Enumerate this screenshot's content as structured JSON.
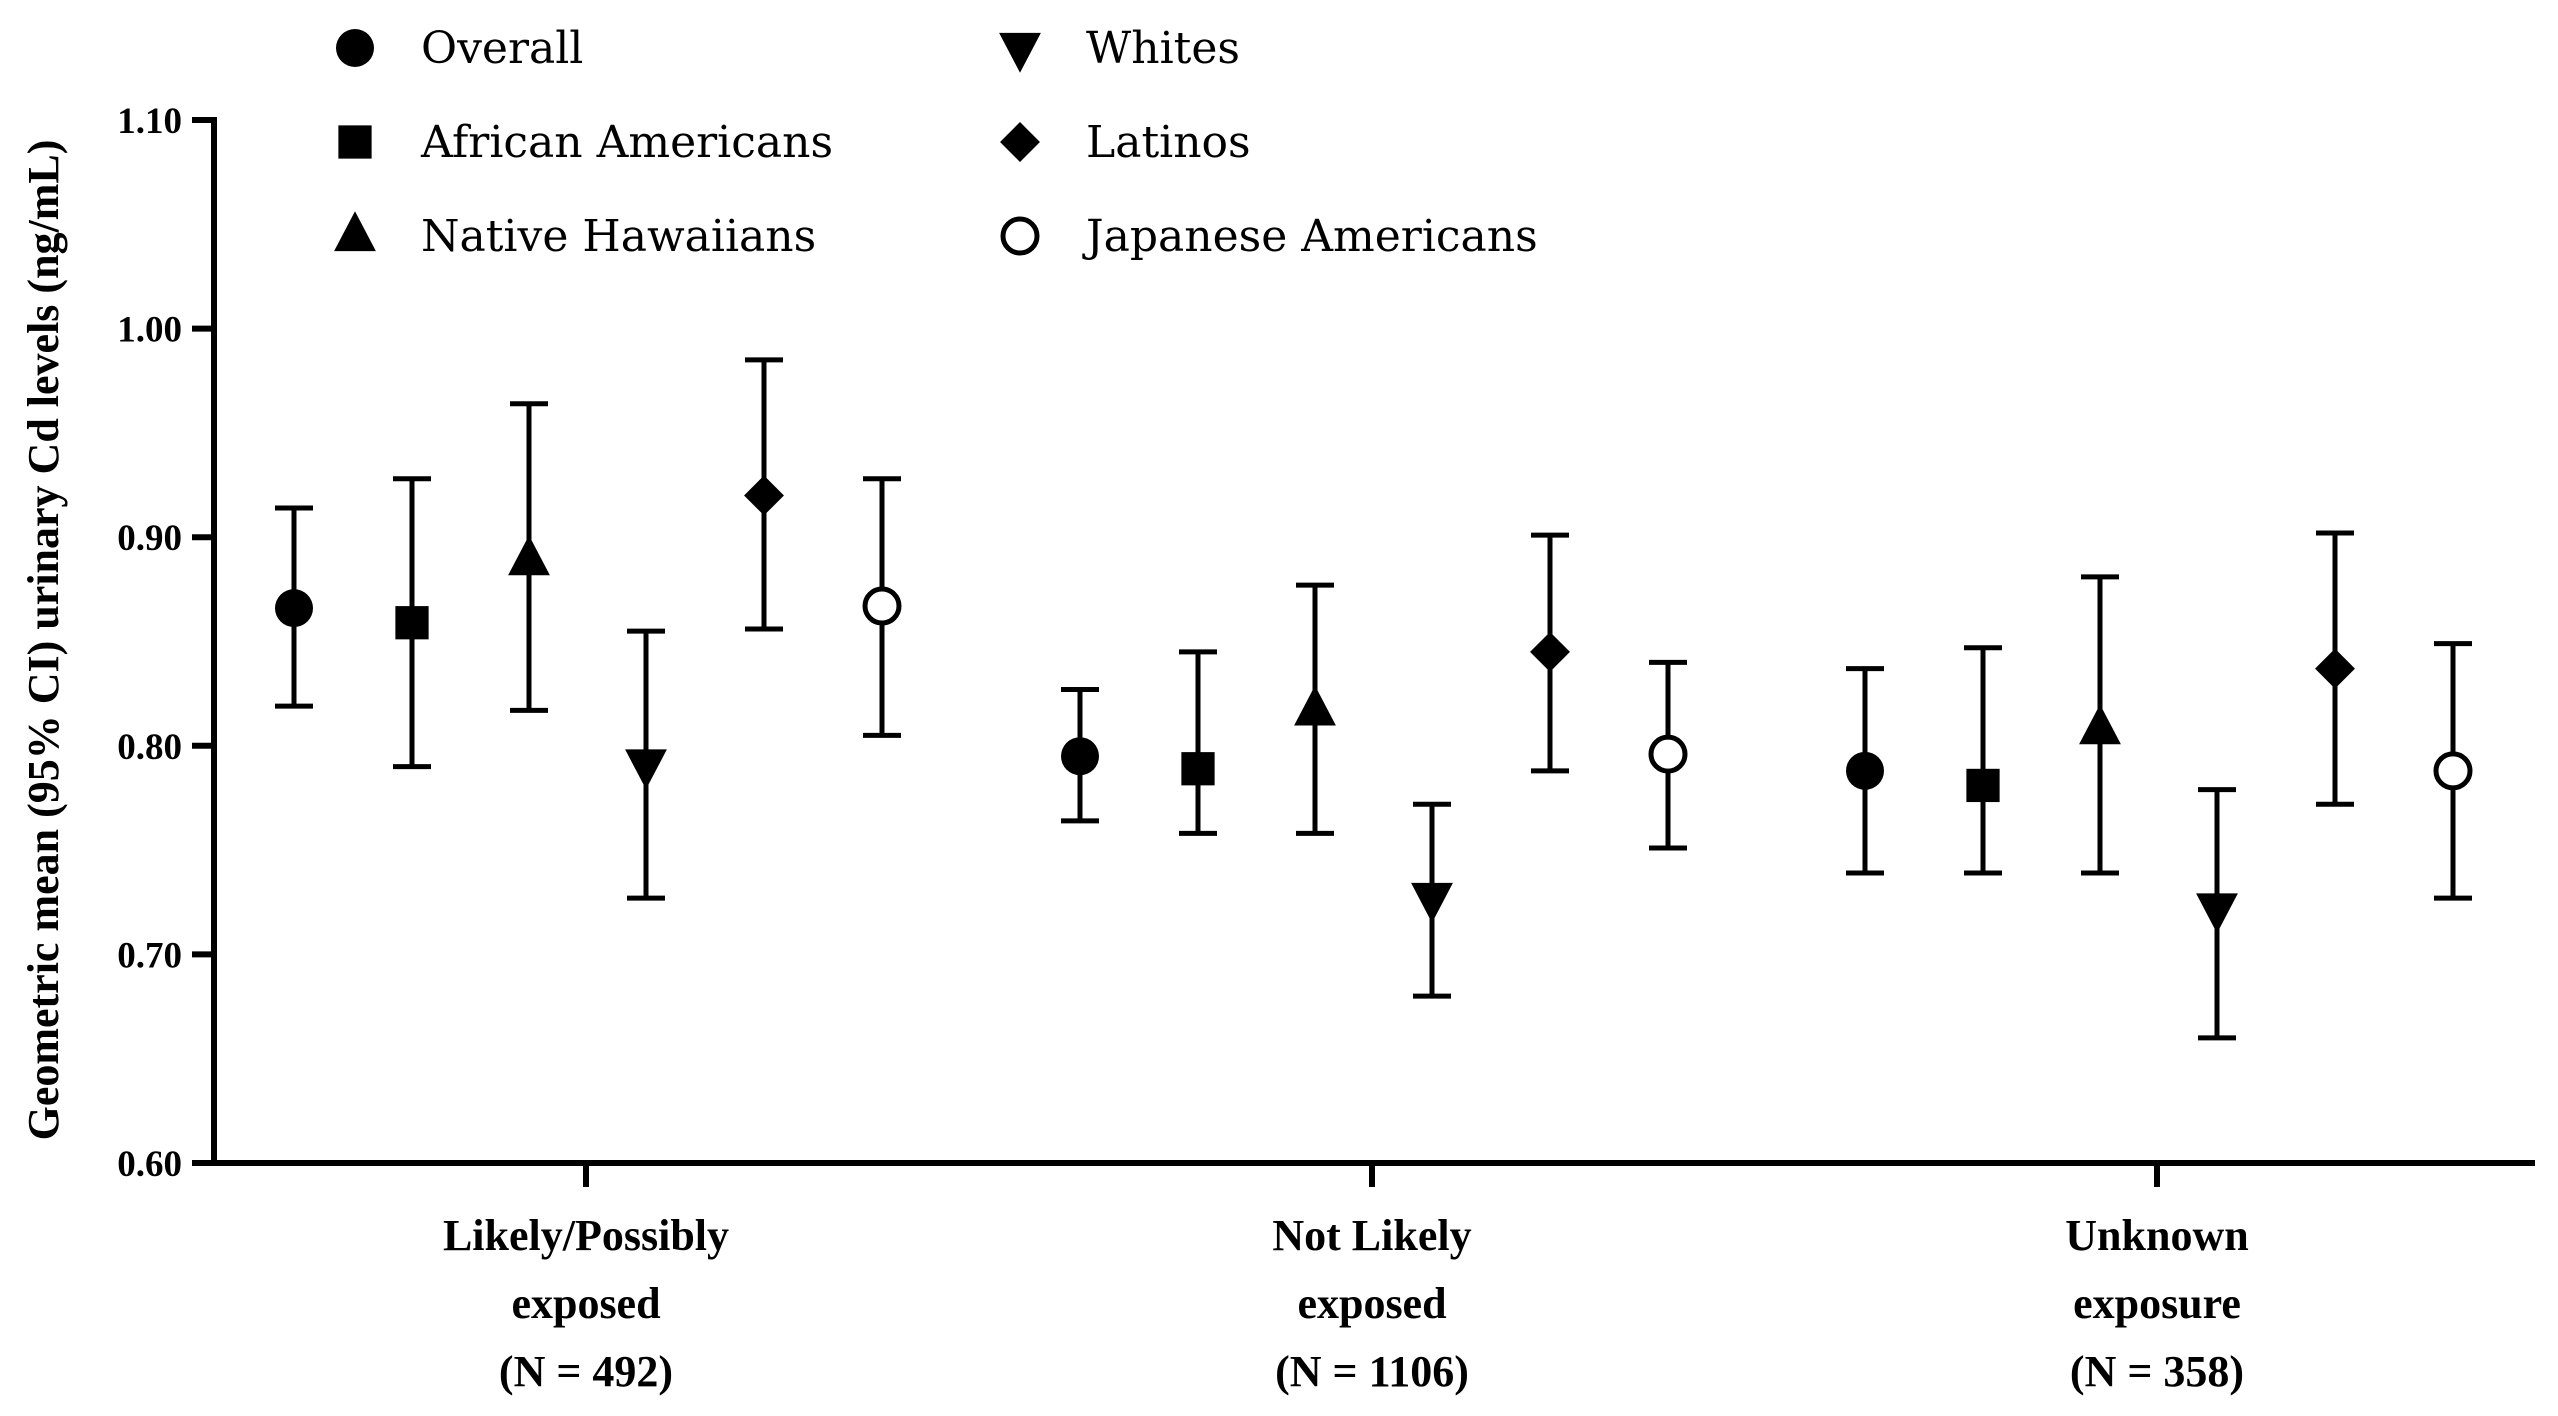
{
  "chart_data": {
    "type": "scatter",
    "subtype": "point-with-error-bars",
    "ylabel": "Geometric mean (95% CI) urinary Cd levels (ng/mL)",
    "xlabel": "",
    "ylim": [
      0.6,
      1.1
    ],
    "yticks": [
      "0.60",
      "0.70",
      "0.80",
      "0.90",
      "1.00",
      "1.10"
    ],
    "grid": false,
    "legend_position": "top",
    "categories": [
      [
        "Likely/Possibly",
        "exposed",
        "(N = 492)"
      ],
      [
        "Not Likely",
        "exposed",
        "(N = 1106)"
      ],
      [
        "Unknown",
        "exposure",
        "(N = 358)"
      ]
    ],
    "series": [
      {
        "name": "Overall",
        "marker": "circle-filled",
        "values": [
          0.866,
          0.795,
          0.788
        ],
        "lower": [
          0.819,
          0.764,
          0.739
        ],
        "upper": [
          0.914,
          0.827,
          0.837
        ]
      },
      {
        "name": "African Americans",
        "marker": "square-filled",
        "values": [
          0.859,
          0.789,
          0.781
        ],
        "lower": [
          0.79,
          0.758,
          0.739
        ],
        "upper": [
          0.928,
          0.845,
          0.847
        ]
      },
      {
        "name": "Native Hawaiians",
        "marker": "triangle-up",
        "values": [
          0.889,
          0.817,
          0.808
        ],
        "lower": [
          0.817,
          0.758,
          0.739
        ],
        "upper": [
          0.964,
          0.877,
          0.881
        ]
      },
      {
        "name": "Whites",
        "marker": "triangle-down",
        "values": [
          0.791,
          0.727,
          0.722
        ],
        "lower": [
          0.727,
          0.68,
          0.66
        ],
        "upper": [
          0.855,
          0.772,
          0.779
        ]
      },
      {
        "name": "Latinos",
        "marker": "diamond-filled",
        "values": [
          0.92,
          0.845,
          0.837
        ],
        "lower": [
          0.856,
          0.788,
          0.772
        ],
        "upper": [
          0.985,
          0.901,
          0.902
        ]
      },
      {
        "name": "Japanese Americans",
        "marker": "circle-open",
        "values": [
          0.867,
          0.796,
          0.788
        ],
        "lower": [
          0.805,
          0.751,
          0.727
        ],
        "upper": [
          0.928,
          0.84,
          0.849
        ]
      }
    ],
    "legend": {
      "items": [
        {
          "label": "Overall",
          "marker": "circle-filled"
        },
        {
          "label": "Whites",
          "marker": "triangle-down"
        },
        {
          "label": "African Americans",
          "marker": "square-filled"
        },
        {
          "label": "Latinos",
          "marker": "diamond-filled"
        },
        {
          "label": "Native Hawaiians",
          "marker": "triangle-up"
        },
        {
          "label": "Japanese Americans",
          "marker": "circle-open"
        }
      ]
    },
    "colors": {
      "ink": "#000000",
      "background": "#ffffff"
    }
  }
}
